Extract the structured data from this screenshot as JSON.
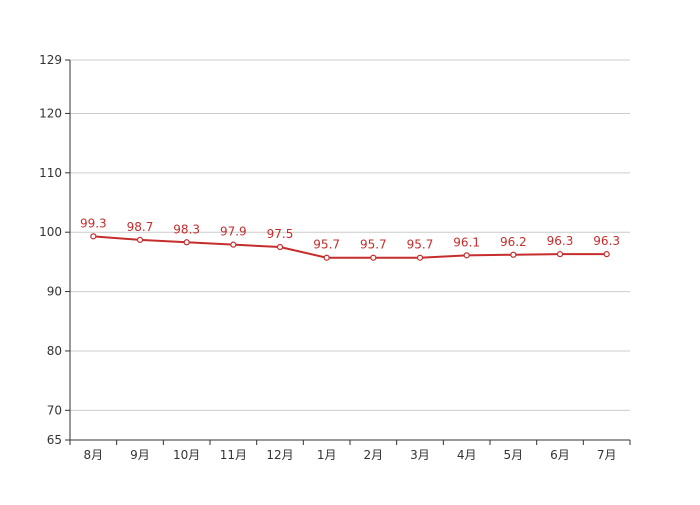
{
  "chart_data": {
    "type": "line",
    "categories": [
      "8月",
      "9月",
      "10月",
      "11月",
      "12月",
      "1月",
      "2月",
      "3月",
      "4月",
      "5月",
      "6月",
      "7月"
    ],
    "series": [
      {
        "values": [
          99.3,
          98.7,
          98.3,
          97.9,
          97.5,
          95.7,
          95.7,
          95.7,
          96.1,
          96.2,
          96.3,
          96.3
        ],
        "color": "#c62d2d"
      }
    ],
    "yticks": [
      65,
      70,
      80,
      90,
      100,
      110,
      120,
      129
    ],
    "ylim": [
      65,
      129
    ],
    "grid": true,
    "data_labels": true,
    "colors": {
      "line": "#c62d2d",
      "label": "#c62d2d",
      "grid": "#cccccc",
      "axis": "#333333"
    }
  }
}
